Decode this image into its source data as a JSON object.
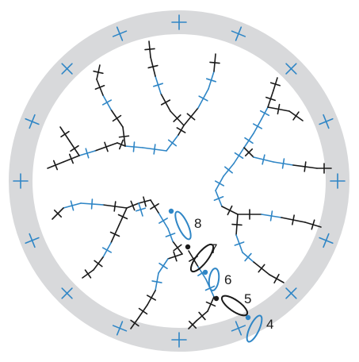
{
  "colors": {
    "ring": "#d8d9db",
    "blue": "#2f86c6",
    "black": "#1a1a1a",
    "background": "#ffffff"
  },
  "labels": [
    "8",
    "7",
    "6",
    "5",
    "4"
  ]
}
